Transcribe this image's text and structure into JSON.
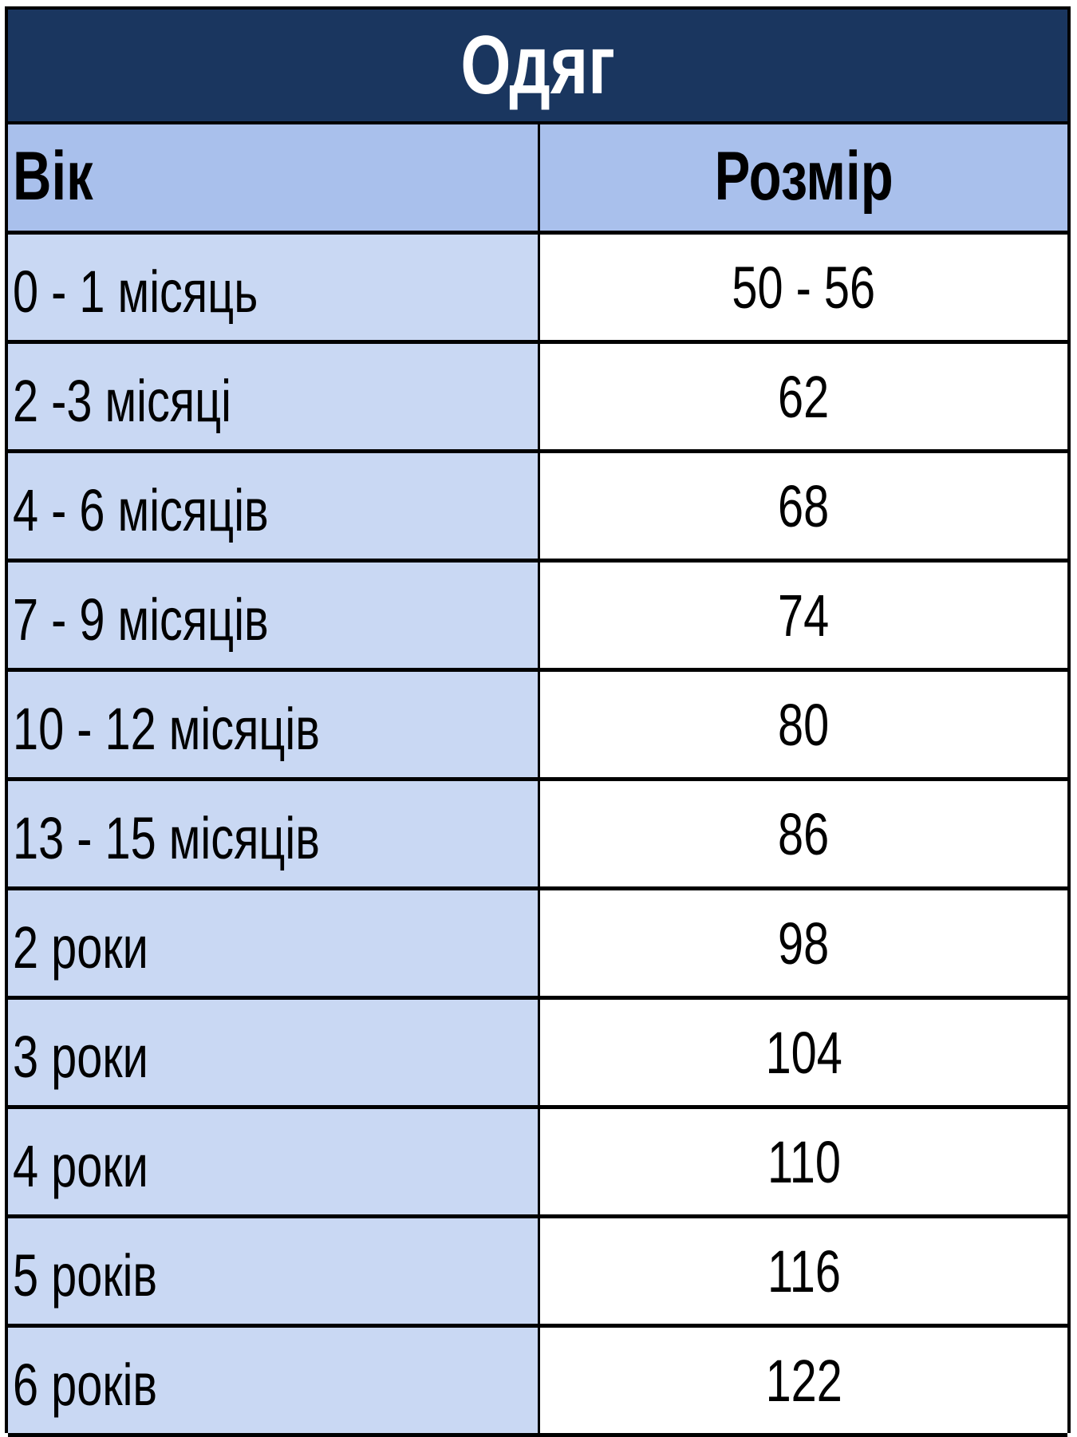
{
  "title": "Одяг",
  "headers": {
    "age": "Вік",
    "size": "Розмір"
  },
  "rows": [
    {
      "age": "0 - 1 місяць",
      "size": "50 - 56"
    },
    {
      "age": "2 -3 місяці",
      "size": "62"
    },
    {
      "age": "4 - 6 місяців",
      "size": "68"
    },
    {
      "age": "7 - 9 місяців",
      "size": "74"
    },
    {
      "age": "10 - 12 місяців",
      "size": "80"
    },
    {
      "age": "13 - 15 місяців",
      "size": "86"
    },
    {
      "age": "2 роки",
      "size": "98"
    },
    {
      "age": "3 роки",
      "size": "104"
    },
    {
      "age": "4 роки",
      "size": "110"
    },
    {
      "age": "5 років",
      "size": "116"
    },
    {
      "age": "6 років",
      "size": "122"
    }
  ],
  "colors": {
    "title_bg": "#1a365f",
    "header_bg": "#a9c0ec",
    "age_col_bg": "#c9d8f3",
    "size_col_bg": "#ffffff"
  }
}
